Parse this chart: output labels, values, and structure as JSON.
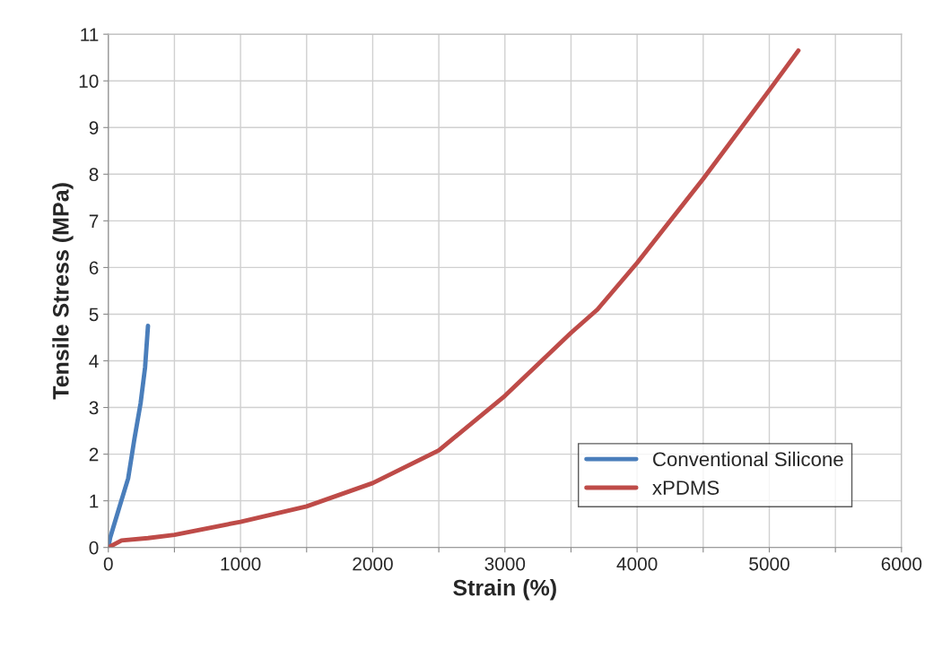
{
  "chart_data": {
    "type": "line",
    "xlabel": "Strain (%)",
    "ylabel": "Tensile Stress (MPa)",
    "series": [
      {
        "name": "Conventional Silicone",
        "color": "#4a7ebb",
        "x": [
          0,
          14,
          81,
          150,
          197,
          244,
          278,
          300
        ],
        "values": [
          0,
          0.21,
          0.84,
          1.48,
          2.32,
          3.09,
          3.86,
          4.75
        ]
      },
      {
        "name": "xPDMS",
        "color": "#be4b48",
        "x": [
          0,
          100,
          300,
          500,
          1000,
          1500,
          2000,
          2500,
          3000,
          3500,
          3700,
          4000,
          4500,
          5000,
          5220
        ],
        "values": [
          0,
          0.15,
          0.2,
          0.27,
          0.55,
          0.88,
          1.38,
          2.08,
          3.25,
          4.6,
          5.1,
          6.1,
          7.9,
          9.8,
          10.65
        ]
      }
    ],
    "xlim": [
      0,
      6000
    ],
    "ylim": [
      0,
      11
    ],
    "xticks": [
      0,
      {
        "value": 500,
        "label": null
      },
      1000,
      {
        "value": 1500,
        "label": null
      },
      2000,
      {
        "value": 2500,
        "label": null
      },
      3000,
      {
        "value": 3500,
        "label": null
      },
      4000,
      {
        "value": 4500,
        "label": null
      },
      5000,
      {
        "value": 5500,
        "label": null
      },
      6000
    ],
    "yticks": [
      0,
      1,
      2,
      3,
      4,
      5,
      6,
      7,
      8,
      9,
      10,
      11
    ],
    "grid": true,
    "legend": "lower right",
    "marker": "none",
    "line_style": "solid"
  }
}
